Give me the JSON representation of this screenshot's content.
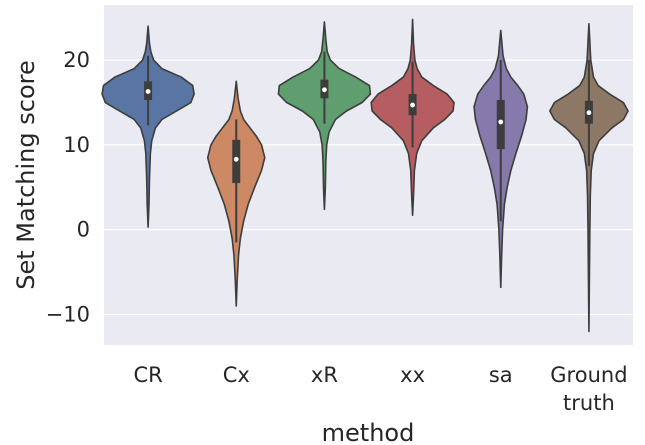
{
  "chart_data": {
    "type": "violin",
    "title": "",
    "xlabel": "method",
    "ylabel": "Set Matching score",
    "ylim": [
      -13.6,
      26.5
    ],
    "yticks": [
      -10,
      0,
      10,
      20
    ],
    "grid": true,
    "legend": "none",
    "colors": {
      "background": "#EAEAF2",
      "grid": "#FFFFFF",
      "outline": "#3D3D3D",
      "median": "#FFFFFF"
    },
    "categories": [
      {
        "label": "CR",
        "label_lines": [
          "CR"
        ],
        "color": "#5975A4",
        "min": 0.3,
        "max": 24.0,
        "q1": 15.3,
        "median": 16.3,
        "q3": 17.5,
        "whisker_low": 12.3,
        "whisker_high": 20.5,
        "density": [
          [
            0.3,
            0.0
          ],
          [
            3,
            0.02
          ],
          [
            6,
            0.03
          ],
          [
            9,
            0.05
          ],
          [
            10.5,
            0.08
          ],
          [
            12,
            0.16
          ],
          [
            13,
            0.3
          ],
          [
            14,
            0.62
          ],
          [
            15,
            0.93
          ],
          [
            16,
            1.0
          ],
          [
            17,
            0.97
          ],
          [
            18,
            0.72
          ],
          [
            19,
            0.3
          ],
          [
            20,
            0.12
          ],
          [
            21,
            0.06
          ],
          [
            22,
            0.03
          ],
          [
            24,
            0.0
          ]
        ]
      },
      {
        "label": "Cx",
        "label_lines": [
          "Cx"
        ],
        "color": "#CC8963",
        "min": -9.0,
        "max": 17.5,
        "q1": 5.5,
        "median": 8.3,
        "q3": 10.6,
        "whisker_low": -1.5,
        "whisker_high": 13.0,
        "density": [
          [
            -9,
            0.0
          ],
          [
            -6,
            0.02
          ],
          [
            -3,
            0.05
          ],
          [
            -1,
            0.09
          ],
          [
            1,
            0.16
          ],
          [
            3,
            0.26
          ],
          [
            5,
            0.4
          ],
          [
            7,
            0.55
          ],
          [
            8.5,
            0.62
          ],
          [
            10,
            0.55
          ],
          [
            11,
            0.44
          ],
          [
            12,
            0.3
          ],
          [
            13,
            0.16
          ],
          [
            14,
            0.09
          ],
          [
            15.5,
            0.04
          ],
          [
            17.5,
            0.0
          ]
        ]
      },
      {
        "label": "xR",
        "label_lines": [
          "xR"
        ],
        "color": "#5F9E6E",
        "min": 2.4,
        "max": 24.5,
        "q1": 15.5,
        "median": 16.5,
        "q3": 17.7,
        "whisker_low": 12.5,
        "whisker_high": 21.0,
        "density": [
          [
            2.4,
            0.0
          ],
          [
            5,
            0.02
          ],
          [
            8,
            0.03
          ],
          [
            10,
            0.05
          ],
          [
            11.5,
            0.1
          ],
          [
            13,
            0.24
          ],
          [
            14,
            0.48
          ],
          [
            15,
            0.82
          ],
          [
            16,
            1.0
          ],
          [
            17,
            0.98
          ],
          [
            18,
            0.68
          ],
          [
            19,
            0.32
          ],
          [
            20,
            0.13
          ],
          [
            21,
            0.06
          ],
          [
            22.5,
            0.03
          ],
          [
            24.5,
            0.0
          ]
        ]
      },
      {
        "label": "xx",
        "label_lines": [
          "xx"
        ],
        "color": "#B55D60",
        "min": 1.7,
        "max": 24.8,
        "q1": 13.5,
        "median": 14.7,
        "q3": 16.0,
        "whisker_low": 9.7,
        "whisker_high": 19.8,
        "density": [
          [
            1.7,
            0.0
          ],
          [
            4,
            0.02
          ],
          [
            7,
            0.04
          ],
          [
            9,
            0.09
          ],
          [
            10.5,
            0.2
          ],
          [
            12,
            0.45
          ],
          [
            13,
            0.7
          ],
          [
            14,
            0.88
          ],
          [
            15,
            0.9
          ],
          [
            16,
            0.75
          ],
          [
            17,
            0.45
          ],
          [
            18,
            0.2
          ],
          [
            19,
            0.1
          ],
          [
            20,
            0.05
          ],
          [
            22,
            0.02
          ],
          [
            24.8,
            0.0
          ]
        ]
      },
      {
        "label": "sa",
        "label_lines": [
          "sa"
        ],
        "color": "#857AAB",
        "min": -6.8,
        "max": 23.5,
        "q1": 9.5,
        "median": 12.7,
        "q3": 15.3,
        "whisker_low": 1.0,
        "whisker_high": 20.0,
        "density": [
          [
            -6.8,
            0.0
          ],
          [
            -3,
            0.02
          ],
          [
            0,
            0.04
          ],
          [
            3,
            0.08
          ],
          [
            5,
            0.14
          ],
          [
            7,
            0.22
          ],
          [
            9,
            0.33
          ],
          [
            11,
            0.45
          ],
          [
            13,
            0.55
          ],
          [
            14.5,
            0.58
          ],
          [
            16,
            0.5
          ],
          [
            17,
            0.37
          ],
          [
            18,
            0.22
          ],
          [
            19,
            0.12
          ],
          [
            20.5,
            0.05
          ],
          [
            23.5,
            0.0
          ]
        ]
      },
      {
        "label": "Ground truth",
        "label_lines": [
          "Ground",
          "truth"
        ],
        "color": "#8D7866",
        "min": -12.0,
        "max": 24.3,
        "q1": 12.5,
        "median": 13.8,
        "q3": 15.2,
        "whisker_low": 7.5,
        "whisker_high": 20.0,
        "density": [
          [
            -12,
            0.0
          ],
          [
            -6,
            0.01
          ],
          [
            0,
            0.02
          ],
          [
            4,
            0.03
          ],
          [
            7,
            0.05
          ],
          [
            9,
            0.1
          ],
          [
            10.5,
            0.22
          ],
          [
            12,
            0.5
          ],
          [
            13,
            0.75
          ],
          [
            14,
            0.85
          ],
          [
            15,
            0.75
          ],
          [
            16,
            0.45
          ],
          [
            17,
            0.2
          ],
          [
            18,
            0.1
          ],
          [
            20,
            0.04
          ],
          [
            24.3,
            0.0
          ]
        ]
      }
    ]
  }
}
